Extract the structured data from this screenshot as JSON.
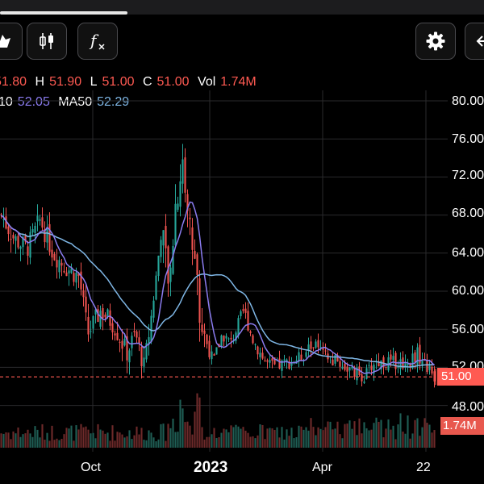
{
  "toolbar": {
    "buttons": [
      {
        "icon": "chart-type-icon"
      },
      {
        "icon": "candlestick-icon"
      },
      {
        "icon": "function-icon",
        "glyph": "f"
      },
      {
        "icon": "gear-icon"
      },
      {
        "icon": "arrow-left-icon"
      }
    ]
  },
  "legend": {
    "open_value": "51.80",
    "high_label": "H",
    "high_value": "51.90",
    "low_label": "L",
    "low_value": "51.00",
    "close_label": "C",
    "close_value": "51.00",
    "vol_label": "Vol",
    "vol_value": "1.74M",
    "ma10_label": "10",
    "ma10_value": "52.05",
    "ma50_label": "MA50",
    "ma50_value": "52.29"
  },
  "axis": {
    "price_ticks": [
      "80.00",
      "76.00",
      "72.00",
      "68.00",
      "64.00",
      "60.00",
      "56.00",
      "52.00",
      "48.00"
    ],
    "x_ticks": [
      "Oct",
      "2023",
      "Apr",
      "22"
    ],
    "last_price_badge": "51.00",
    "volume_badge": "1.74M"
  },
  "colors": {
    "up": "#26a69a",
    "down": "#ef5350",
    "ma10": "#8b7cf0",
    "ma50": "#7fb7e6",
    "last_price_line": "#ff5a52",
    "grid": "#2a2a2c",
    "axis_text": "#ffffff"
  },
  "chart_data": {
    "type": "candlestick",
    "ylim": [
      46,
      82
    ],
    "last_price": 51.0,
    "close_anchors": [
      {
        "x": 0.0,
        "y": 68.0
      },
      {
        "x": 0.03,
        "y": 65.5
      },
      {
        "x": 0.06,
        "y": 64.5
      },
      {
        "x": 0.09,
        "y": 67.5
      },
      {
        "x": 0.12,
        "y": 64.0
      },
      {
        "x": 0.15,
        "y": 62.5
      },
      {
        "x": 0.18,
        "y": 61.5
      },
      {
        "x": 0.2,
        "y": 55.5
      },
      {
        "x": 0.23,
        "y": 58.0
      },
      {
        "x": 0.26,
        "y": 56.5
      },
      {
        "x": 0.29,
        "y": 53.5
      },
      {
        "x": 0.31,
        "y": 55.5
      },
      {
        "x": 0.33,
        "y": 52.0
      },
      {
        "x": 0.35,
        "y": 58.5
      },
      {
        "x": 0.37,
        "y": 66.5
      },
      {
        "x": 0.39,
        "y": 60.0
      },
      {
        "x": 0.4,
        "y": 68.5
      },
      {
        "x": 0.42,
        "y": 73.5
      },
      {
        "x": 0.43,
        "y": 68.5
      },
      {
        "x": 0.45,
        "y": 62.5
      },
      {
        "x": 0.46,
        "y": 56.5
      },
      {
        "x": 0.49,
        "y": 52.5
      },
      {
        "x": 0.51,
        "y": 55.5
      },
      {
        "x": 0.53,
        "y": 54.5
      },
      {
        "x": 0.56,
        "y": 58.0
      },
      {
        "x": 0.58,
        "y": 55.0
      },
      {
        "x": 0.61,
        "y": 52.5
      },
      {
        "x": 0.63,
        "y": 52.0
      },
      {
        "x": 0.66,
        "y": 52.5
      },
      {
        "x": 0.69,
        "y": 53.0
      },
      {
        "x": 0.72,
        "y": 54.5
      },
      {
        "x": 0.75,
        "y": 53.0
      },
      {
        "x": 0.78,
        "y": 52.5
      },
      {
        "x": 0.81,
        "y": 51.5
      },
      {
        "x": 0.84,
        "y": 51.0
      },
      {
        "x": 0.86,
        "y": 52.5
      },
      {
        "x": 0.9,
        "y": 52.5
      },
      {
        "x": 0.94,
        "y": 52.5
      },
      {
        "x": 0.96,
        "y": 53.5
      },
      {
        "x": 1.0,
        "y": 51.0
      }
    ]
  }
}
